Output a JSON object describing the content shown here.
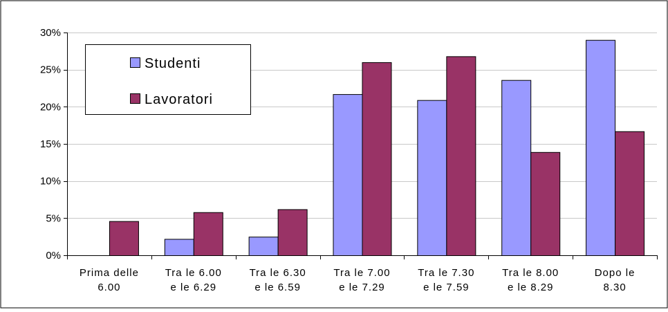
{
  "chart_data": {
    "type": "bar",
    "categories": [
      [
        "Prima delle",
        "6.00"
      ],
      [
        "Tra le 6.00",
        "e le 6.29"
      ],
      [
        "Tra le 6.30",
        "e le 6.59"
      ],
      [
        "Tra le 7.00",
        "e le 7.29"
      ],
      [
        "Tra le 7.30",
        "e le 7.59"
      ],
      [
        "Tra le 8.00",
        "e le 8.29"
      ],
      [
        "Dopo le",
        "8.30"
      ]
    ],
    "series": [
      {
        "name": "Studenti",
        "color": "#9999ff",
        "values": [
          0,
          2.2,
          2.5,
          21.7,
          20.9,
          23.6,
          29.0
        ]
      },
      {
        "name": "Lavoratori",
        "color": "#993366",
        "values": [
          4.6,
          5.8,
          6.2,
          26.0,
          26.8,
          13.9,
          16.7
        ]
      }
    ],
    "y_ticks": [
      "0%",
      "5%",
      "10%",
      "15%",
      "20%",
      "25%",
      "30%"
    ],
    "ylim": [
      0,
      30
    ],
    "grid": true,
    "legend_position": "top-left",
    "plot_background": "#ffffff",
    "bar_outline": "#000000"
  }
}
